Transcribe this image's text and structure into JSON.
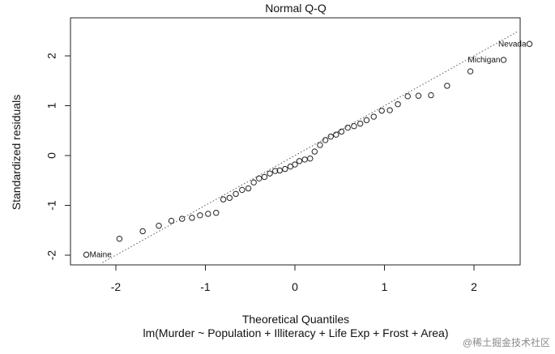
{
  "chart_data": {
    "type": "scatter",
    "title": "Normal Q-Q",
    "xlabel": "Theoretical Quantiles",
    "ylabel": "Standardized residuals",
    "subtitle": "lm(Murder ~ Population + Illiteracy + Life Exp + Frost + Area)",
    "xlim": [
      -2.4,
      2.5
    ],
    "ylim": [
      -2.15,
      2.75
    ],
    "xticks": [
      -2,
      -1,
      0,
      1,
      2
    ],
    "yticks": [
      -2,
      -1,
      0,
      1,
      2
    ],
    "grid": false,
    "reference_line": {
      "style": "dotted",
      "intercept": 0,
      "slope": 1
    },
    "points": [
      {
        "x": -2.33,
        "y": -1.99,
        "label": "Maine"
      },
      {
        "x": -1.96,
        "y": -1.67
      },
      {
        "x": -1.7,
        "y": -1.52
      },
      {
        "x": -1.52,
        "y": -1.41
      },
      {
        "x": -1.38,
        "y": -1.31
      },
      {
        "x": -1.26,
        "y": -1.27
      },
      {
        "x": -1.15,
        "y": -1.25
      },
      {
        "x": -1.06,
        "y": -1.2
      },
      {
        "x": -0.97,
        "y": -1.17
      },
      {
        "x": -0.88,
        "y": -1.15
      },
      {
        "x": -0.8,
        "y": -0.88
      },
      {
        "x": -0.73,
        "y": -0.85
      },
      {
        "x": -0.66,
        "y": -0.77
      },
      {
        "x": -0.59,
        "y": -0.69
      },
      {
        "x": -0.52,
        "y": -0.66
      },
      {
        "x": -0.46,
        "y": -0.54
      },
      {
        "x": -0.4,
        "y": -0.46
      },
      {
        "x": -0.34,
        "y": -0.43
      },
      {
        "x": -0.28,
        "y": -0.36
      },
      {
        "x": -0.22,
        "y": -0.31
      },
      {
        "x": -0.17,
        "y": -0.3
      },
      {
        "x": -0.11,
        "y": -0.27
      },
      {
        "x": -0.05,
        "y": -0.22
      },
      {
        "x": 0.0,
        "y": -0.18
      },
      {
        "x": 0.05,
        "y": -0.11
      },
      {
        "x": 0.11,
        "y": -0.08
      },
      {
        "x": 0.17,
        "y": -0.06
      },
      {
        "x": 0.22,
        "y": 0.08
      },
      {
        "x": 0.28,
        "y": 0.21
      },
      {
        "x": 0.34,
        "y": 0.31
      },
      {
        "x": 0.4,
        "y": 0.38
      },
      {
        "x": 0.46,
        "y": 0.42
      },
      {
        "x": 0.52,
        "y": 0.48
      },
      {
        "x": 0.59,
        "y": 0.56
      },
      {
        "x": 0.66,
        "y": 0.59
      },
      {
        "x": 0.73,
        "y": 0.64
      },
      {
        "x": 0.8,
        "y": 0.71
      },
      {
        "x": 0.88,
        "y": 0.78
      },
      {
        "x": 0.97,
        "y": 0.9
      },
      {
        "x": 1.06,
        "y": 0.91
      },
      {
        "x": 1.15,
        "y": 1.03
      },
      {
        "x": 1.26,
        "y": 1.19
      },
      {
        "x": 1.38,
        "y": 1.2
      },
      {
        "x": 1.52,
        "y": 1.21
      },
      {
        "x": 1.7,
        "y": 1.4
      },
      {
        "x": 1.96,
        "y": 1.69
      },
      {
        "x": 2.33,
        "y": 1.92,
        "label": "Michigan"
      },
      {
        "x": 2.62,
        "y": 2.24,
        "label": "Nevada"
      }
    ]
  },
  "watermark": "@稀土掘金技术社区"
}
